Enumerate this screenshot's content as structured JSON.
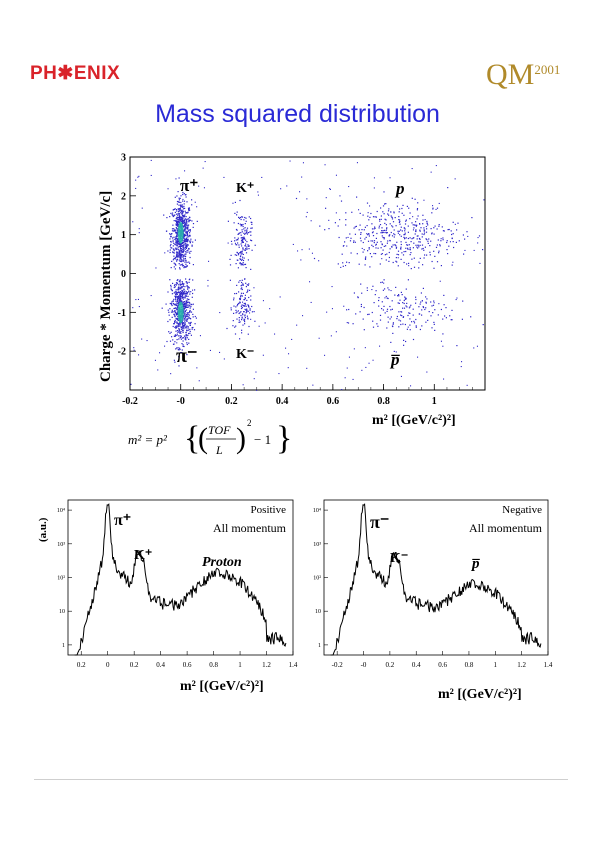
{
  "header": {
    "left_logo": "PH✱ENIX",
    "right_logo_big": "QM",
    "right_logo_year": "2001",
    "title": "Mass squared distribution"
  },
  "formula": {
    "lhs": "m² = p²",
    "ratio_num": "TOF",
    "ratio_den": "L",
    "tail": "− 1"
  },
  "colors": {
    "title": "#2a2ad6",
    "scatter": "#2f27c9",
    "dense_core": "#28c0a8",
    "hist": "#000000"
  },
  "chart_data": [
    {
      "type": "scatter",
      "ylabel": "Charge * Momentum [GeV/c]",
      "xlabel": "m² [(GeV/c²)²]",
      "xlim": [
        -0.2,
        1.2
      ],
      "ylim": [
        -3,
        3
      ],
      "xticks": [
        "-0.2",
        "-0",
        "0.2",
        "0.4",
        "0.6",
        "0.8",
        "1"
      ],
      "yticks": [
        "3",
        "2",
        "1",
        "0",
        "-1",
        "-2"
      ],
      "annotations": [
        "π⁺",
        "K⁺",
        "p",
        "π⁻",
        "K⁻",
        "p̅"
      ],
      "clusters": [
        {
          "label": "π⁺",
          "x": 0.0,
          "y": 1.0,
          "sx": 0.02,
          "sy": 0.45,
          "n": 700
        },
        {
          "label": "π⁻",
          "x": 0.0,
          "y": -0.95,
          "sx": 0.02,
          "sy": 0.45,
          "n": 650
        },
        {
          "label": "K⁺",
          "x": 0.24,
          "y": 0.85,
          "sx": 0.018,
          "sy": 0.4,
          "n": 160
        },
        {
          "label": "K⁻",
          "x": 0.24,
          "y": -0.8,
          "sx": 0.018,
          "sy": 0.4,
          "n": 140
        },
        {
          "label": "p",
          "x": 0.86,
          "y": 1.0,
          "sx": 0.12,
          "sy": 0.45,
          "n": 420
        },
        {
          "label": "p̅",
          "x": 0.86,
          "y": -0.95,
          "sx": 0.1,
          "sy": 0.35,
          "n": 180
        }
      ]
    },
    {
      "type": "line",
      "legend": [
        "Positive",
        "All momentum"
      ],
      "ylabel": "(a.u.)",
      "xlabel": "m² [(GeV/c²)²]",
      "xlim": [
        -0.3,
        1.4
      ],
      "ylim_log10": [
        -0.3,
        4.3
      ],
      "xticks": [
        "0.2",
        "0",
        "0.2",
        "0.4",
        "0.6",
        "0.8",
        "1",
        "1.2",
        "1.4"
      ],
      "yticks": [
        "10⁴",
        "10³",
        "10²",
        "10",
        "1"
      ],
      "annotations": [
        "π⁺",
        "K⁺",
        "Proton"
      ],
      "peaks": [
        {
          "label": "π⁺",
          "x": 0.0,
          "log10_height": 4.1
        },
        {
          "label": "K⁺",
          "x": 0.24,
          "log10_height": 2.7
        },
        {
          "label": "Proton",
          "x": 0.86,
          "log10_height": 2.1
        }
      ]
    },
    {
      "type": "line",
      "legend": [
        "Negative",
        "All momentum"
      ],
      "ylabel": "",
      "xlabel": "m² [(GeV/c²)²]",
      "xlim": [
        -0.3,
        1.4
      ],
      "ylim_log10": [
        -0.3,
        4.3
      ],
      "xticks": [
        "-0.2",
        "-0",
        "0.2",
        "0.4",
        "0.6",
        "0.8",
        "1",
        "1.2",
        "1.4"
      ],
      "yticks": [
        "10⁴",
        "10³",
        "10²",
        "10",
        "1"
      ],
      "annotations": [
        "π⁻",
        "K⁻",
        "p̅"
      ],
      "peaks": [
        {
          "label": "π⁻",
          "x": 0.0,
          "log10_height": 4.1
        },
        {
          "label": "K⁻",
          "x": 0.24,
          "log10_height": 2.65
        },
        {
          "label": "p̅",
          "x": 0.86,
          "log10_height": 1.75
        }
      ]
    }
  ]
}
